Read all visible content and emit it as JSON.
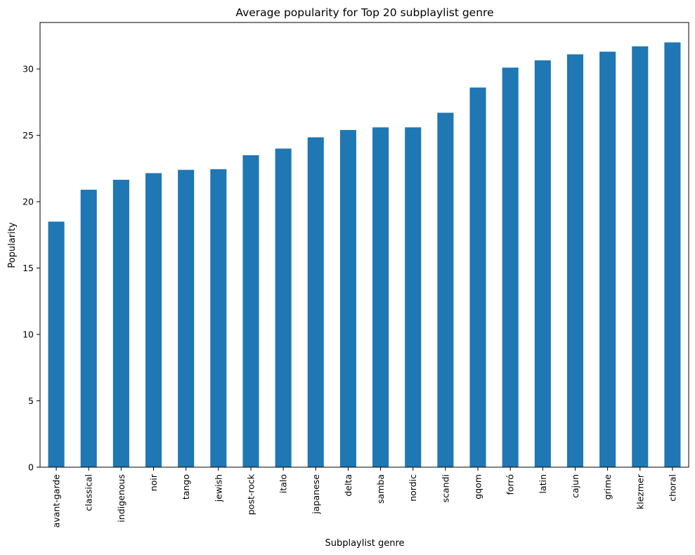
{
  "chart_data": {
    "type": "bar",
    "title": "Average popularity for Top 20 subplaylist genre",
    "xlabel": "Subplaylist genre",
    "ylabel": "Popularity",
    "ylim": [
      0,
      33.5
    ],
    "yticks": [
      0,
      5,
      10,
      15,
      20,
      25,
      30
    ],
    "grid": false,
    "bar_color": "#1f77b4",
    "categories": [
      "avant-garde",
      "classical",
      "indigenous",
      "noir",
      "tango",
      "jewish",
      "post-rock",
      "italo",
      "japanese",
      "delta",
      "samba",
      "nordic",
      "scandi",
      "gqom",
      "forró",
      "latin",
      "cajun",
      "grime",
      "klezmer",
      "choral"
    ],
    "values": [
      18.5,
      20.9,
      21.65,
      22.15,
      22.4,
      22.45,
      23.5,
      24.0,
      24.85,
      25.4,
      25.6,
      25.6,
      26.7,
      28.6,
      30.1,
      30.65,
      31.1,
      31.3,
      31.7,
      32.0
    ]
  }
}
